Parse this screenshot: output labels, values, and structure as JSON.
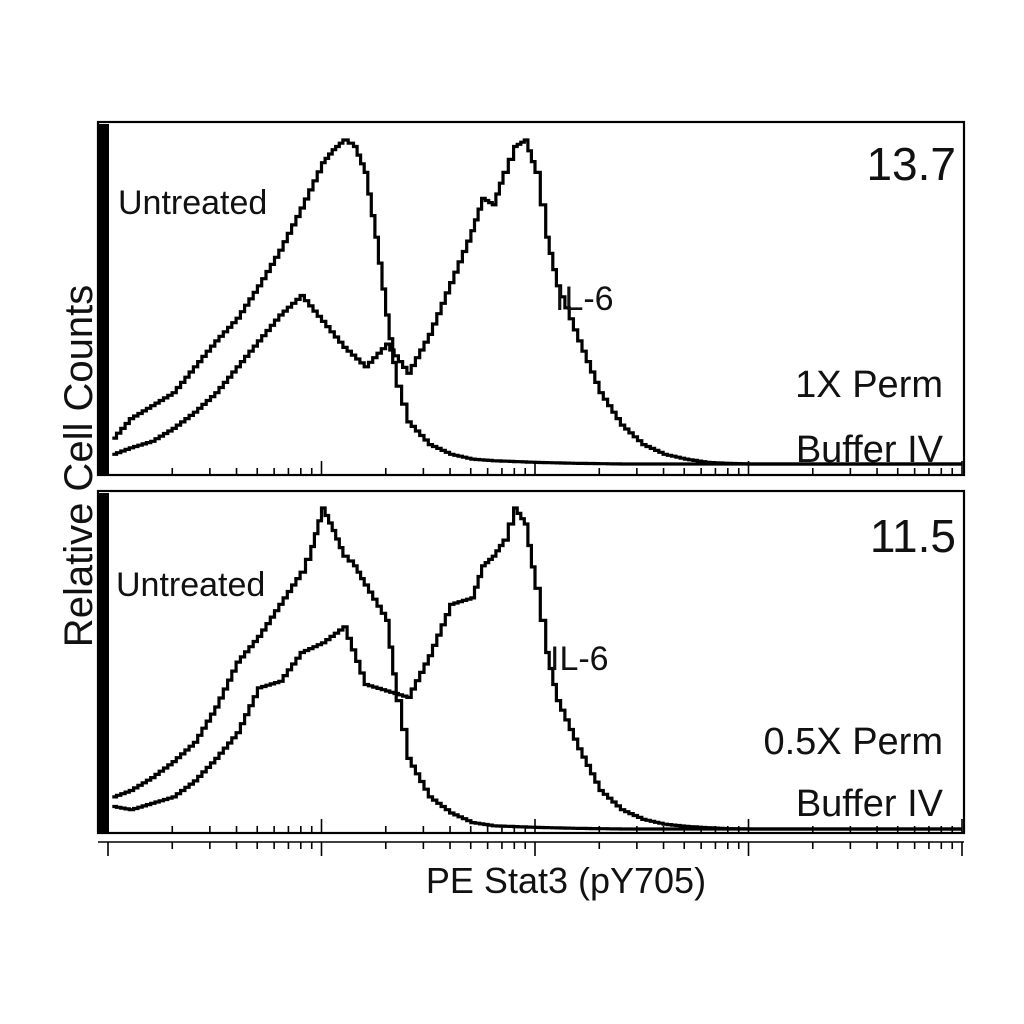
{
  "chart_data": {
    "type": "histogram-overlay",
    "xlabel": "PE Stat3 (pY705)",
    "ylabel": "Relative Cell Counts",
    "x_scale": "log",
    "x_range_decades": [
      0,
      4
    ],
    "ylim": [
      0,
      1
    ],
    "panels": [
      {
        "stain_index": "13.7",
        "condition_lines": [
          "1X Perm",
          "Buffer IV"
        ],
        "series": [
          {
            "name": "Untreated",
            "x": [
              0.02,
              0.1,
              0.2,
              0.3,
              0.4,
              0.5,
              0.6,
              0.7,
              0.8,
              0.9,
              1.0,
              1.05,
              1.1,
              1.15,
              1.2,
              1.25,
              1.3,
              1.35,
              1.4,
              1.5,
              1.6,
              1.7,
              1.8,
              2.0,
              2.2,
              2.4
            ],
            "y": [
              0.08,
              0.14,
              0.18,
              0.22,
              0.3,
              0.38,
              0.45,
              0.55,
              0.66,
              0.79,
              0.93,
              0.97,
              1.0,
              0.98,
              0.9,
              0.7,
              0.46,
              0.24,
              0.13,
              0.06,
              0.03,
              0.015,
              0.01,
              0.005,
              0.002,
              0
            ]
          },
          {
            "name": "IL-6",
            "x": [
              0.02,
              0.1,
              0.2,
              0.3,
              0.4,
              0.5,
              0.6,
              0.7,
              0.8,
              0.9,
              1.0,
              1.1,
              1.2,
              1.3,
              1.4,
              1.5,
              1.6,
              1.7,
              1.75,
              1.8,
              1.85,
              1.9,
              1.95,
              2.0,
              2.05,
              2.1,
              2.2,
              2.3,
              2.4,
              2.5,
              2.6,
              2.7,
              2.8,
              2.9,
              3.0
            ],
            "y": [
              0.03,
              0.05,
              0.07,
              0.11,
              0.16,
              0.22,
              0.3,
              0.38,
              0.46,
              0.52,
              0.44,
              0.36,
              0.3,
              0.37,
              0.28,
              0.4,
              0.56,
              0.72,
              0.82,
              0.8,
              0.9,
              0.98,
              1.0,
              0.9,
              0.7,
              0.55,
              0.38,
              0.22,
              0.12,
              0.06,
              0.03,
              0.015,
              0.005,
              0.002,
              0
            ]
          }
        ],
        "series_labels": [
          "Untreated",
          "IL-6"
        ]
      },
      {
        "stain_index": "11.5",
        "condition_lines": [
          "0.5X Perm",
          "Buffer IV"
        ],
        "series": [
          {
            "name": "Untreated",
            "x": [
              0.02,
              0.1,
              0.2,
              0.3,
              0.4,
              0.5,
              0.6,
              0.7,
              0.8,
              0.9,
              0.95,
              1.0,
              1.05,
              1.1,
              1.15,
              1.2,
              1.3,
              1.35,
              1.4,
              1.5,
              1.6,
              1.7,
              1.8,
              2.0,
              2.2,
              2.4
            ],
            "y": [
              0.1,
              0.12,
              0.16,
              0.21,
              0.27,
              0.38,
              0.52,
              0.6,
              0.7,
              0.8,
              0.88,
              1.0,
              0.93,
              0.85,
              0.82,
              0.76,
              0.65,
              0.4,
              0.22,
              0.1,
              0.05,
              0.02,
              0.01,
              0.005,
              0.002,
              0
            ]
          },
          {
            "name": "IL-6",
            "x": [
              0.02,
              0.1,
              0.2,
              0.3,
              0.4,
              0.5,
              0.6,
              0.7,
              0.8,
              0.9,
              1.0,
              1.1,
              1.2,
              1.3,
              1.4,
              1.5,
              1.6,
              1.7,
              1.75,
              1.8,
              1.85,
              1.9,
              1.95,
              2.0,
              2.05,
              2.1,
              2.2,
              2.3,
              2.4,
              2.5,
              2.6,
              2.7,
              2.8,
              2.9,
              3.0
            ],
            "y": [
              0.07,
              0.06,
              0.08,
              0.1,
              0.15,
              0.22,
              0.3,
              0.44,
              0.46,
              0.55,
              0.58,
              0.63,
              0.45,
              0.43,
              0.41,
              0.54,
              0.7,
              0.72,
              0.82,
              0.85,
              0.9,
              1.0,
              0.95,
              0.75,
              0.55,
              0.4,
              0.25,
              0.12,
              0.06,
              0.03,
              0.015,
              0.008,
              0.004,
              0.001,
              0
            ]
          }
        ],
        "series_labels": [
          "Untreated",
          "IL-6"
        ]
      }
    ]
  }
}
